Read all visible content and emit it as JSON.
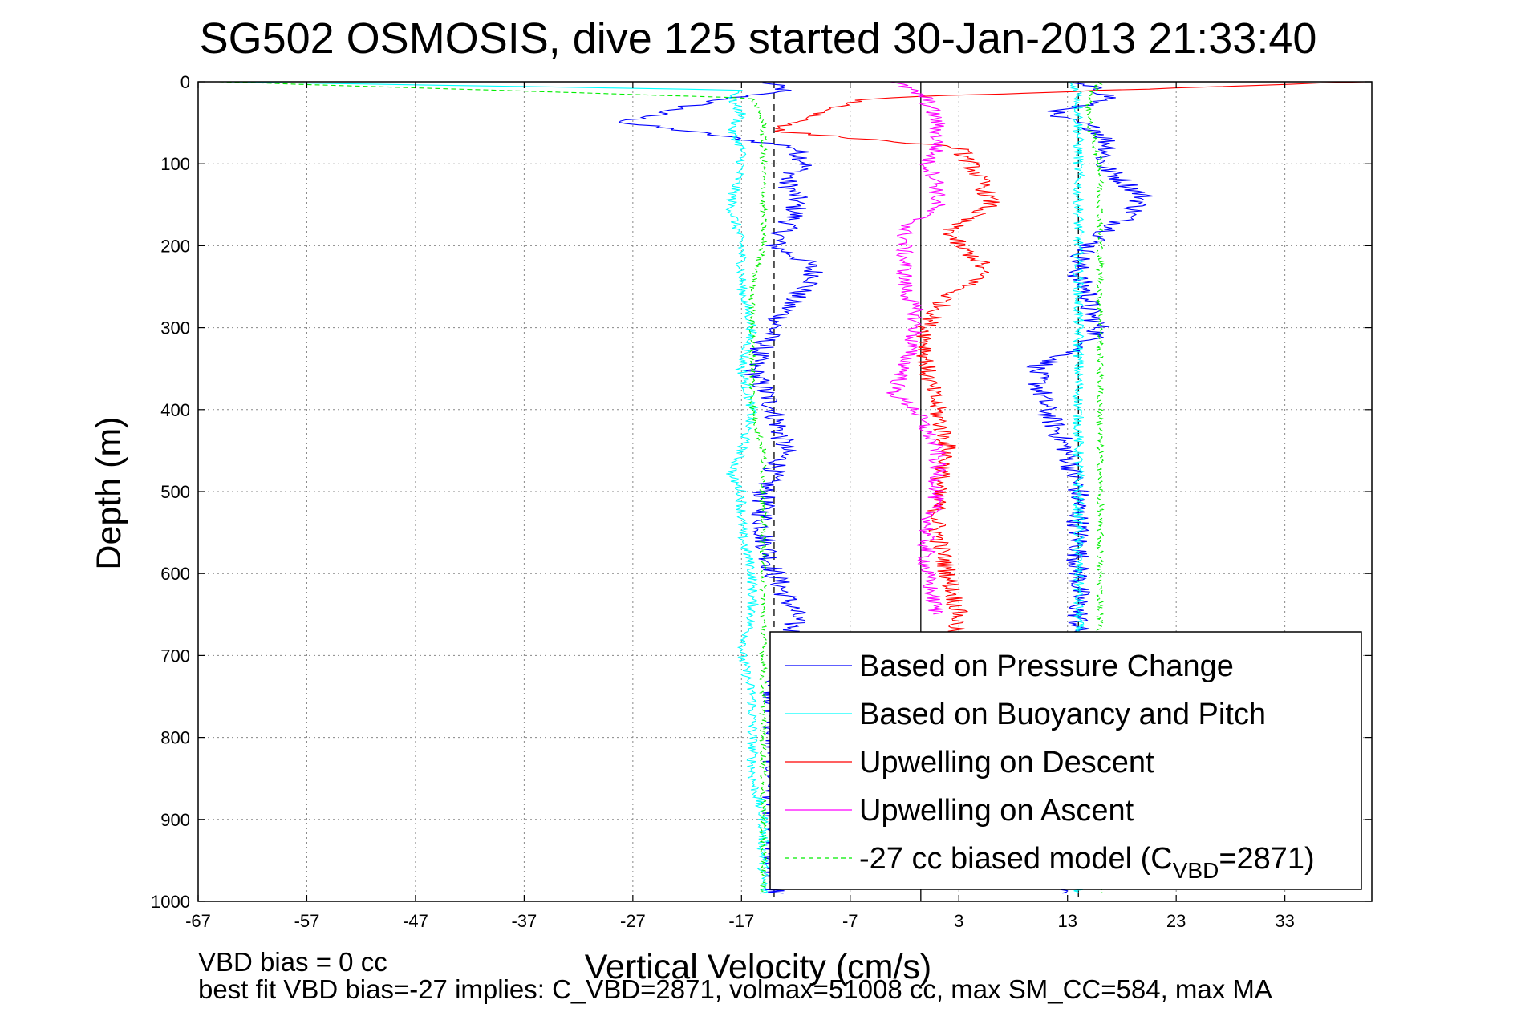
{
  "chart_data": {
    "type": "line",
    "title": "SG502 OSMOSIS, dive 125 started 30-Jan-2013 21:33:40",
    "xlabel": "Vertical Velocity (cm/s)",
    "ylabel": "Depth (m)",
    "xlim": [
      -67,
      41
    ],
    "ylim": [
      0,
      1000
    ],
    "y_reversed": true,
    "grid": true,
    "x_ticks": [
      "-67",
      "-57",
      "-47",
      "-37",
      "-27",
      "-17",
      "-7",
      "3",
      "13",
      "23",
      "33"
    ],
    "y_ticks": [
      "0",
      "100",
      "200",
      "300",
      "400",
      "500",
      "600",
      "700",
      "800",
      "900",
      "1000"
    ],
    "legend_position": "bottom-right",
    "reference_lines": [
      {
        "x": -14,
        "style": "dashed",
        "color": "#000000"
      },
      {
        "x": -0.5,
        "style": "solid",
        "color": "#000000"
      },
      {
        "x": 14,
        "style": "dashed",
        "color": "#000000"
      }
    ],
    "series": [
      {
        "name": "Based on Pressure Change",
        "color": "#0000ff",
        "depth": [
          0,
          10,
          20,
          30,
          40,
          50,
          60,
          80,
          100,
          120,
          140,
          160,
          180,
          200,
          220,
          240,
          260,
          280,
          300,
          320,
          350,
          400,
          450,
          500,
          550,
          600,
          650,
          700,
          750,
          800,
          850,
          900,
          950,
          990
        ],
        "descent": [
          -15,
          -13,
          -18,
          -22,
          -25,
          -28,
          -22,
          -12,
          -11,
          -13,
          -12,
          -12,
          -13,
          -14,
          -11,
          -10,
          -12,
          -13,
          -14,
          -15,
          -16,
          -14,
          -13,
          -15,
          -15,
          -14,
          -12,
          -13,
          -14,
          -14,
          -14,
          -14,
          -14,
          -14
        ],
        "ascent": [
          13,
          16,
          17,
          14,
          11,
          14,
          16,
          17,
          16,
          18,
          20,
          19,
          17,
          15,
          14,
          14,
          15,
          15,
          16,
          15,
          10,
          11,
          13,
          14,
          14,
          14,
          14,
          14,
          14,
          14,
          14,
          14,
          14,
          13
        ]
      },
      {
        "name": "Based on Buoyancy and Pitch",
        "color": "#00ffff",
        "depth": [
          0,
          10,
          20,
          40,
          60,
          80,
          100,
          150,
          200,
          250,
          300,
          350,
          400,
          450,
          480,
          500,
          550,
          600,
          650,
          700,
          750,
          800,
          850,
          900,
          950,
          990
        ],
        "descent": [
          -65,
          -17,
          -18,
          -17,
          -18,
          -17,
          -17,
          -18,
          -17,
          -17,
          -16,
          -17,
          -16,
          -17,
          -18,
          -17,
          -17,
          -16,
          -16,
          -17,
          -16,
          -16,
          -16,
          -15,
          -15,
          -15
        ],
        "ascent": [
          13,
          14,
          14,
          14,
          14,
          14,
          14,
          14,
          14,
          14,
          14,
          14,
          14,
          14,
          14,
          14,
          14,
          14,
          14,
          14,
          14,
          14,
          14,
          14,
          14,
          14
        ]
      },
      {
        "name": "Upwelling on Descent",
        "color": "#ff0000",
        "depth": [
          0,
          20,
          30,
          40,
          50,
          60,
          80,
          100,
          120,
          150,
          180,
          200,
          220,
          240,
          260,
          280,
          300,
          350,
          400,
          450,
          500,
          550,
          600,
          650,
          700
        ],
        "values": [
          40,
          -5,
          -8,
          -10,
          -12,
          -14,
          3,
          4,
          5,
          6,
          2,
          3,
          5,
          5,
          2,
          1,
          0,
          0,
          1,
          2,
          1,
          1,
          2,
          3,
          2
        ]
      },
      {
        "name": "Upwelling on Ascent",
        "color": "#ff00ff",
        "depth": [
          0,
          20,
          50,
          80,
          100,
          120,
          150,
          180,
          200,
          250,
          280,
          300,
          350,
          380,
          400,
          450,
          500,
          550,
          600,
          650
        ],
        "values": [
          -3,
          0,
          1,
          1,
          0,
          1,
          1,
          -2,
          -2,
          -2,
          -1,
          -1,
          -2,
          -3,
          -1,
          1,
          1,
          0,
          0,
          1
        ]
      },
      {
        "name": "-27 cc biased model (C_VBD=2871)",
        "color": "#00ee00",
        "dashed": true,
        "depth": [
          0,
          20,
          50,
          100,
          150,
          200,
          250,
          300,
          350,
          400,
          450,
          500,
          550,
          600,
          650,
          700,
          750,
          800,
          850,
          900,
          950,
          990
        ],
        "descent": [
          -65,
          -16,
          -15,
          -15,
          -15,
          -15,
          -16,
          -16,
          -16,
          -16,
          -15,
          -15,
          -15,
          -15,
          -15,
          -15,
          -15,
          -15,
          -15,
          -15,
          -15,
          -15
        ],
        "ascent": [
          16,
          15,
          15,
          16,
          16,
          16,
          16,
          16,
          16,
          16,
          16,
          16,
          16,
          16,
          16,
          16,
          16,
          16,
          16,
          16,
          16,
          16
        ]
      }
    ],
    "legend": [
      "Based on Pressure Change",
      "Based on Buoyancy and Pitch",
      "Upwelling on Descent",
      "Upwelling on Ascent",
      "-27 cc biased model (C"
    ],
    "legend_subscript": "VBD",
    "legend_suffix": "=2871)",
    "footer": [
      "VBD bias = 0 cc",
      "best fit VBD bias=-27 implies: C_VBD=2871, volmax=51008 cc, max SM_CC=584, max MA"
    ]
  }
}
